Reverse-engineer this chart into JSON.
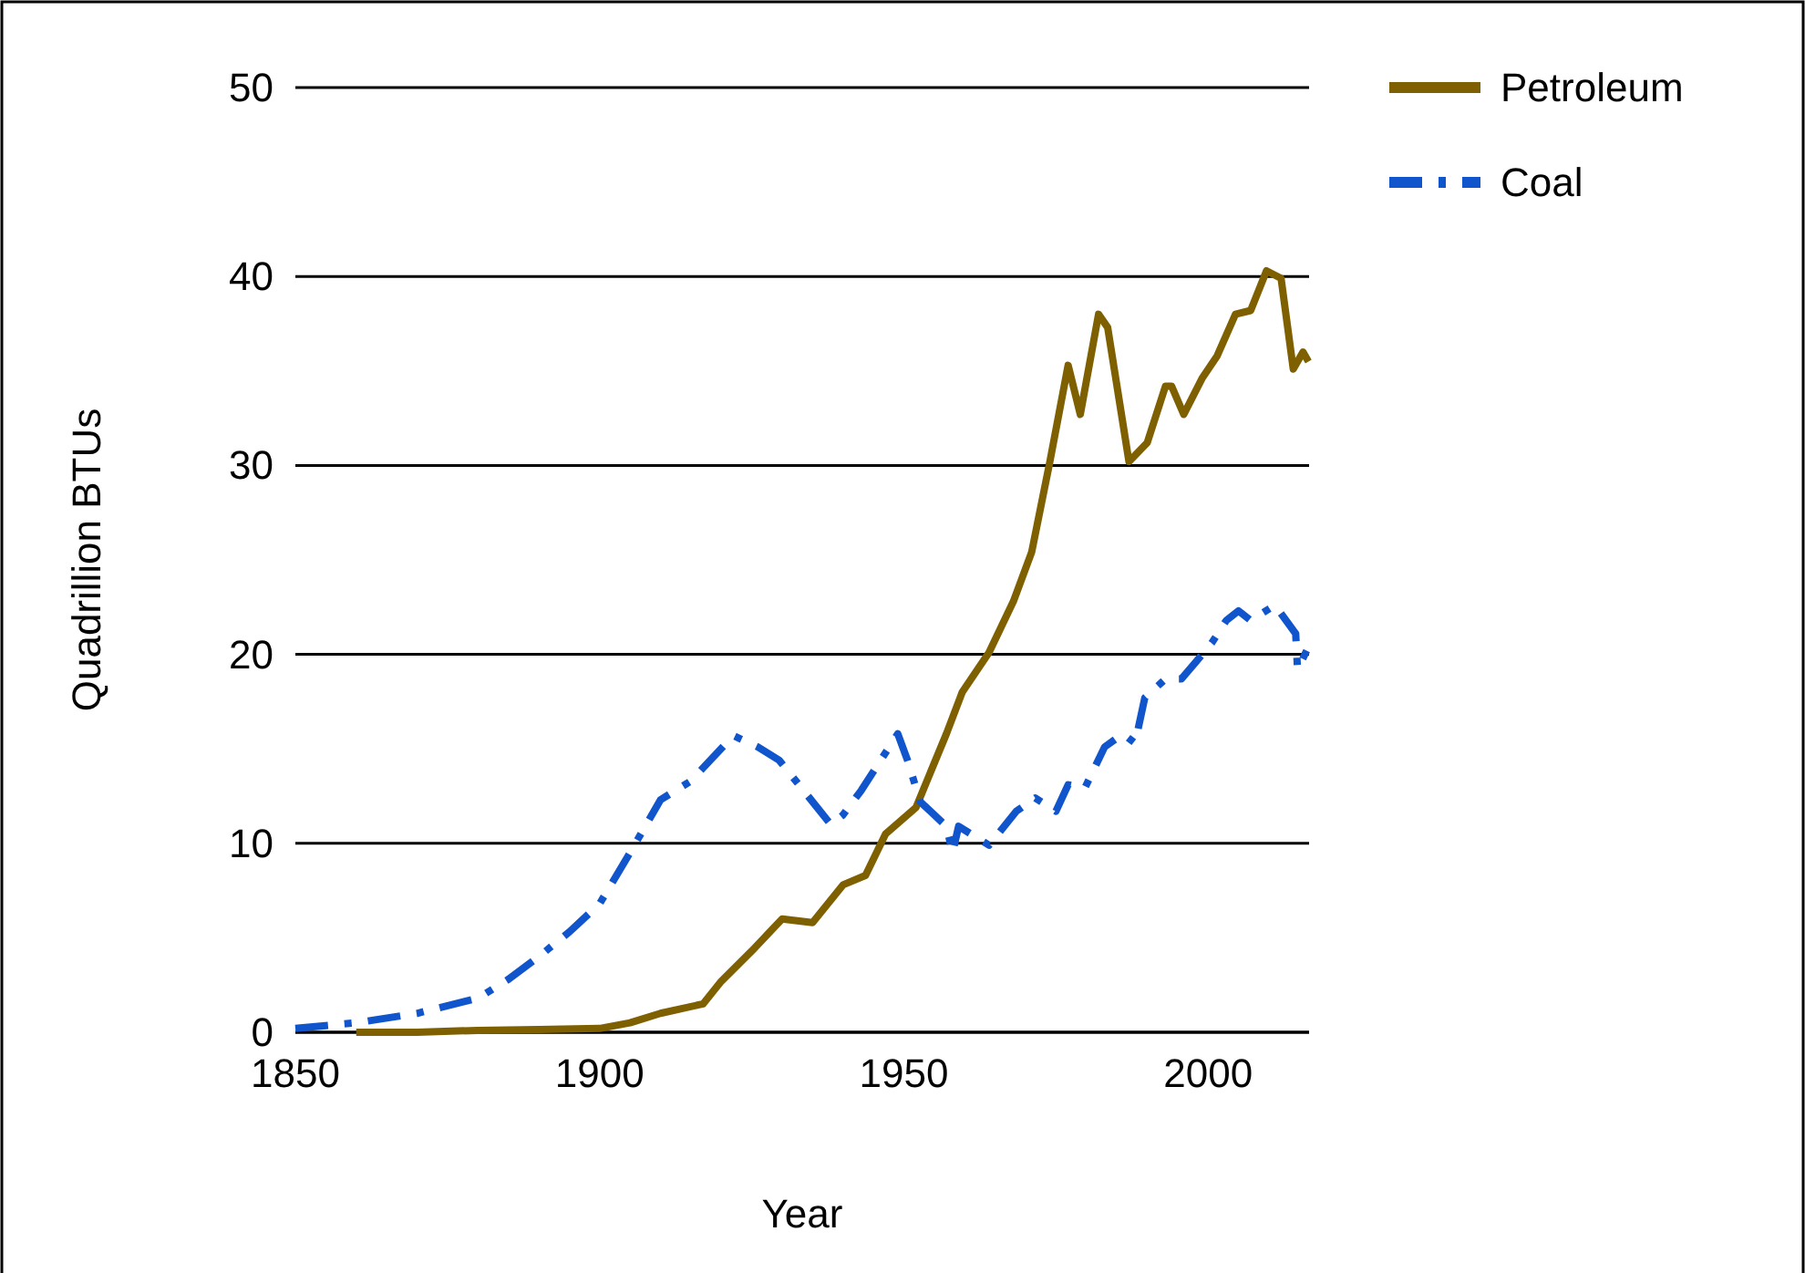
{
  "chart_data": {
    "type": "line",
    "xlabel": "Year",
    "ylabel": "Quadrillion BTUs",
    "xlim": [
      1850,
      2016.6
    ],
    "xticks": [
      1850,
      1900,
      1950,
      2000
    ],
    "ylim": [
      0,
      50
    ],
    "yticks": [
      0,
      10,
      20,
      30,
      40,
      50
    ],
    "grid": "y",
    "legend": "top right",
    "series": [
      {
        "name": "Petroleum",
        "color": "#7f6000",
        "line_style": "solid",
        "x": [
          1860,
          1870,
          1880,
          1890,
          1900,
          1905,
          1910,
          1917,
          1920,
          1925,
          1930,
          1935,
          1940,
          1943.7,
          1947,
          1952,
          1957,
          1959.6,
          1964,
          1968,
          1971,
          1974,
          1977,
          1979,
          1982,
          1983.5,
          1987,
          1990,
          1993,
          1994,
          1996,
          1999,
          2001.5,
          2004.5,
          2007,
          2009.6,
          2012,
          2014,
          2015.6,
          2016.5
        ],
        "values": [
          0,
          0,
          0.1,
          0.15,
          0.2,
          0.5,
          1.0,
          1.5,
          2.7,
          4.3,
          6.0,
          5.8,
          7.8,
          8.3,
          10.5,
          11.9,
          15.8,
          18,
          20.1,
          22.8,
          25.4,
          30.2,
          35.3,
          32.7,
          38.0,
          37.3,
          30.2,
          31.2,
          34.2,
          34.2,
          32.7,
          34.6,
          35.8,
          38.0,
          38.2,
          40.3,
          39.9,
          35.1,
          36.0,
          35.5
        ]
      },
      {
        "name": "Coal",
        "color": "#1155cc",
        "line_style": "dashed",
        "x": [
          1850,
          1860,
          1870,
          1880,
          1885,
          1890,
          1895,
          1900,
          1905,
          1910,
          1915,
          1922,
          1926,
          1929.5,
          1938,
          1940,
          1943,
          1949,
          1950.6,
          1952.7,
          1957,
          1958,
          1959,
          1964,
          1968.5,
          1971.6,
          1975,
          1977,
          1979.7,
          1983,
          1986,
          1988,
          1989.6,
          1993,
          1995.6,
          1998,
          2000.6,
          2003,
          2005,
          2007,
          2011,
          2014.4,
          2014.7,
          2016.2
        ],
        "values": [
          0.2,
          0.5,
          1.0,
          1.8,
          2.8,
          4.0,
          5.3,
          6.8,
          9.5,
          12.3,
          13.3,
          15.7,
          15.1,
          14.4,
          11.0,
          11.5,
          12.8,
          15.8,
          14.4,
          12.2,
          10.9,
          9.5,
          10.9,
          9.9,
          11.7,
          12.4,
          11.7,
          13.1,
          12.9,
          15.1,
          15.8,
          15.3,
          17.7,
          18.7,
          18.7,
          19.6,
          20.6,
          21.8,
          22.3,
          21.8,
          22.6,
          21.1,
          19.2,
          20.2
        ]
      }
    ]
  }
}
